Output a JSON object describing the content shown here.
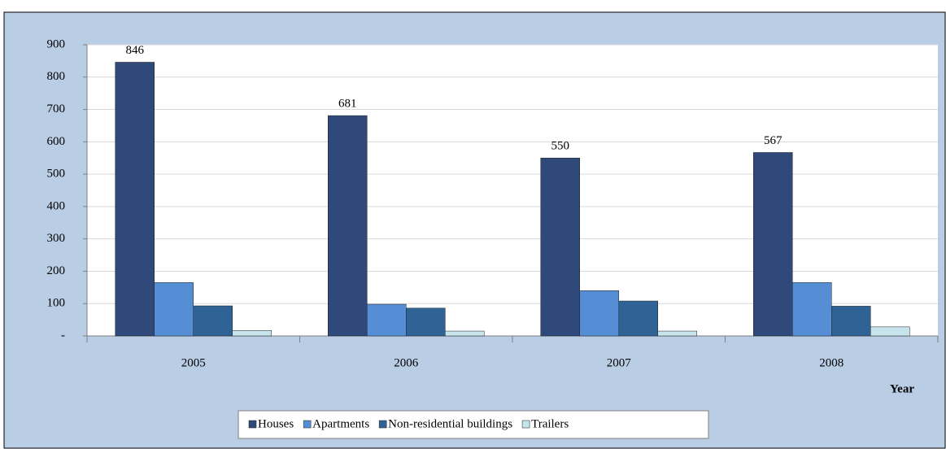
{
  "chart_data": {
    "type": "bar",
    "categories": [
      "2005",
      "2006",
      "2007",
      "2008"
    ],
    "x_label": "Year",
    "series": [
      {
        "name": "Houses",
        "color": "#2f4a7a",
        "values": [
          846,
          681,
          550,
          567
        ],
        "show_labels": true
      },
      {
        "name": "Apartments",
        "color": "#558ed5",
        "values": [
          165,
          98,
          140,
          165
        ],
        "show_labels": false
      },
      {
        "name": "Non-residential buildings",
        "color": "#2f6396",
        "values": [
          93,
          86,
          108,
          92
        ],
        "show_labels": false
      },
      {
        "name": "Trailers",
        "color": "#c6e4ec",
        "values": [
          17,
          15,
          15,
          28
        ],
        "show_labels": false
      }
    ],
    "ylim": [
      0,
      900
    ],
    "yticks": [
      {
        "value": 0,
        "label": "-"
      },
      100,
      200,
      300,
      400,
      500,
      600,
      700,
      800,
      900
    ],
    "grid": true,
    "legend": "bottom"
  }
}
